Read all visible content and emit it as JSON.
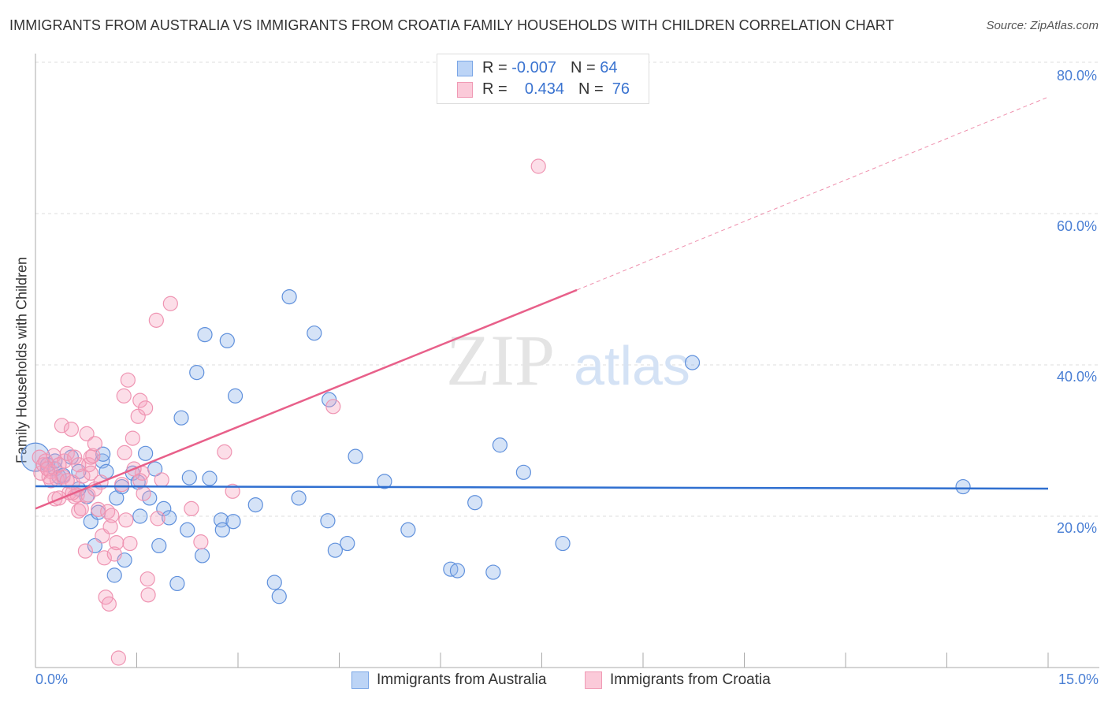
{
  "title": "IMMIGRANTS FROM AUSTRALIA VS IMMIGRANTS FROM CROATIA FAMILY HOUSEHOLDS WITH CHILDREN CORRELATION CHART",
  "source": "Source: ZipAtlas.com",
  "watermark": "ZIPatlas",
  "legend": [
    {
      "r_label": "R =",
      "r": "-0.007",
      "n_label": "N =",
      "n": "64"
    },
    {
      "r_label": "R =",
      "r": "0.434",
      "n_label": "N =",
      "n": "76"
    }
  ],
  "chart_data": {
    "type": "scatter",
    "title": "IMMIGRANTS FROM AUSTRALIA VS IMMIGRANTS FROM CROATIA FAMILY HOUSEHOLDS WITH CHILDREN CORRELATION CHART",
    "xlabel": "",
    "ylabel": "Family Households with Children",
    "xlim": [
      0,
      15
    ],
    "ylim": [
      0,
      80
    ],
    "x_tick_labels": [
      "0.0%",
      "15.0%"
    ],
    "y_tick_labels": [
      "80.0%",
      "60.0%",
      "40.0%",
      "20.0%"
    ],
    "y_ticks": [
      80,
      60,
      40,
      20
    ],
    "grid": true,
    "legend_position": "bottom",
    "series": [
      {
        "name": "Immigrants from Australia",
        "color": "#6f9fe0",
        "trend": {
          "x": [
            0,
            15
          ],
          "y": [
            23.96,
            23.65
          ],
          "color": "#2f6fd0"
        },
        "points": [
          [
            0.0,
            27.8
          ],
          [
            0.18,
            26.8
          ],
          [
            0.29,
            26.25
          ],
          [
            0.35,
            25.2
          ],
          [
            0.53,
            27.8
          ],
          [
            0.64,
            25.9
          ],
          [
            0.76,
            22.6
          ],
          [
            0.82,
            19.3
          ],
          [
            0.88,
            16.1
          ],
          [
            0.93,
            20.5
          ],
          [
            0.99,
            27.3
          ],
          [
            1.0,
            28.2
          ],
          [
            1.05,
            25.9
          ],
          [
            1.17,
            12.2
          ],
          [
            1.2,
            22.4
          ],
          [
            1.28,
            23.9
          ],
          [
            1.32,
            14.2
          ],
          [
            1.44,
            25.7
          ],
          [
            1.52,
            24.5
          ],
          [
            1.55,
            20.0
          ],
          [
            1.63,
            28.3
          ],
          [
            1.69,
            22.4
          ],
          [
            1.77,
            26.25
          ],
          [
            1.83,
            16.1
          ],
          [
            1.9,
            21.0
          ],
          [
            1.98,
            19.8
          ],
          [
            2.1,
            11.1
          ],
          [
            2.16,
            33.0
          ],
          [
            2.25,
            18.2
          ],
          [
            2.28,
            25.1
          ],
          [
            2.39,
            39.0
          ],
          [
            2.47,
            14.8
          ],
          [
            2.51,
            44.0
          ],
          [
            2.58,
            25.0
          ],
          [
            2.75,
            19.5
          ],
          [
            2.77,
            18.2
          ],
          [
            2.84,
            43.2
          ],
          [
            2.93,
            19.3
          ],
          [
            2.96,
            35.9
          ],
          [
            3.26,
            21.5
          ],
          [
            3.54,
            11.25
          ],
          [
            3.61,
            9.4
          ],
          [
            3.76,
            49.0
          ],
          [
            3.9,
            22.4
          ],
          [
            4.13,
            44.2
          ],
          [
            4.33,
            19.4
          ],
          [
            4.35,
            35.4
          ],
          [
            4.44,
            15.5
          ],
          [
            4.62,
            16.4
          ],
          [
            4.74,
            27.9
          ],
          [
            5.17,
            24.6
          ],
          [
            5.52,
            18.2
          ],
          [
            6.15,
            13.0
          ],
          [
            6.25,
            12.8
          ],
          [
            6.51,
            21.8
          ],
          [
            6.78,
            12.6
          ],
          [
            6.88,
            29.4
          ],
          [
            7.23,
            25.8
          ],
          [
            7.81,
            16.4
          ],
          [
            9.73,
            40.3
          ],
          [
            13.74,
            23.9
          ],
          [
            0.29,
            27.3
          ],
          [
            0.41,
            25.4
          ],
          [
            0.64,
            23.6
          ]
        ]
      },
      {
        "name": "Immigrants from Croatia",
        "color": "#f08aaa",
        "trend": {
          "x": [
            0,
            8.02
          ],
          "y": [
            21.0,
            49.9
          ],
          "dashed_to": [
            15,
            75.4
          ],
          "color": "#e8608a"
        },
        "points": [
          [
            0.06,
            27.8
          ],
          [
            0.08,
            25.7
          ],
          [
            0.12,
            26.8
          ],
          [
            0.15,
            27.3
          ],
          [
            0.2,
            25.2
          ],
          [
            0.23,
            25.9
          ],
          [
            0.27,
            28.0
          ],
          [
            0.29,
            22.3
          ],
          [
            0.32,
            24.9
          ],
          [
            0.35,
            22.4
          ],
          [
            0.39,
            32.0
          ],
          [
            0.41,
            25.2
          ],
          [
            0.43,
            27.3
          ],
          [
            0.47,
            28.3
          ],
          [
            0.5,
            23.1
          ],
          [
            0.53,
            31.5
          ],
          [
            0.55,
            24.5
          ],
          [
            0.58,
            27.8
          ],
          [
            0.62,
            22.8
          ],
          [
            0.64,
            20.7
          ],
          [
            0.68,
            21.0
          ],
          [
            0.7,
            25.3
          ],
          [
            0.74,
            15.4
          ],
          [
            0.76,
            30.9
          ],
          [
            0.78,
            22.8
          ],
          [
            0.79,
            26.8
          ],
          [
            0.82,
            27.8
          ],
          [
            0.85,
            28.0
          ],
          [
            0.88,
            29.6
          ],
          [
            0.93,
            20.9
          ],
          [
            0.97,
            24.5
          ],
          [
            0.99,
            17.4
          ],
          [
            1.02,
            14.5
          ],
          [
            1.04,
            9.3
          ],
          [
            1.07,
            20.6
          ],
          [
            1.09,
            8.4
          ],
          [
            1.11,
            18.6
          ],
          [
            1.13,
            20.1
          ],
          [
            1.17,
            15.0
          ],
          [
            1.2,
            16.5
          ],
          [
            1.23,
            1.25
          ],
          [
            1.28,
            24.2
          ],
          [
            1.31,
            35.9
          ],
          [
            1.32,
            28.4
          ],
          [
            1.34,
            19.5
          ],
          [
            1.37,
            38.0
          ],
          [
            1.4,
            16.4
          ],
          [
            1.44,
            30.3
          ],
          [
            1.52,
            33.2
          ],
          [
            1.55,
            35.3
          ],
          [
            1.58,
            25.7
          ],
          [
            1.6,
            23.0
          ],
          [
            1.63,
            34.3
          ],
          [
            1.66,
            11.7
          ],
          [
            1.67,
            9.6
          ],
          [
            1.79,
            45.9
          ],
          [
            1.81,
            19.7
          ],
          [
            1.87,
            24.8
          ],
          [
            2.0,
            48.1
          ],
          [
            2.31,
            21.0
          ],
          [
            2.45,
            16.6
          ],
          [
            2.8,
            28.5
          ],
          [
            2.92,
            23.3
          ],
          [
            4.41,
            34.5
          ],
          [
            7.45,
            66.25
          ],
          [
            0.18,
            26.25
          ],
          [
            0.23,
            24.7
          ],
          [
            0.35,
            26.8
          ],
          [
            0.47,
            24.7
          ],
          [
            0.58,
            22.6
          ],
          [
            0.82,
            25.7
          ],
          [
            0.88,
            23.6
          ],
          [
            1.46,
            26.25
          ],
          [
            1.55,
            24.7
          ],
          [
            0.64,
            26.8
          ],
          [
            0.55,
            23.1
          ]
        ]
      }
    ]
  }
}
